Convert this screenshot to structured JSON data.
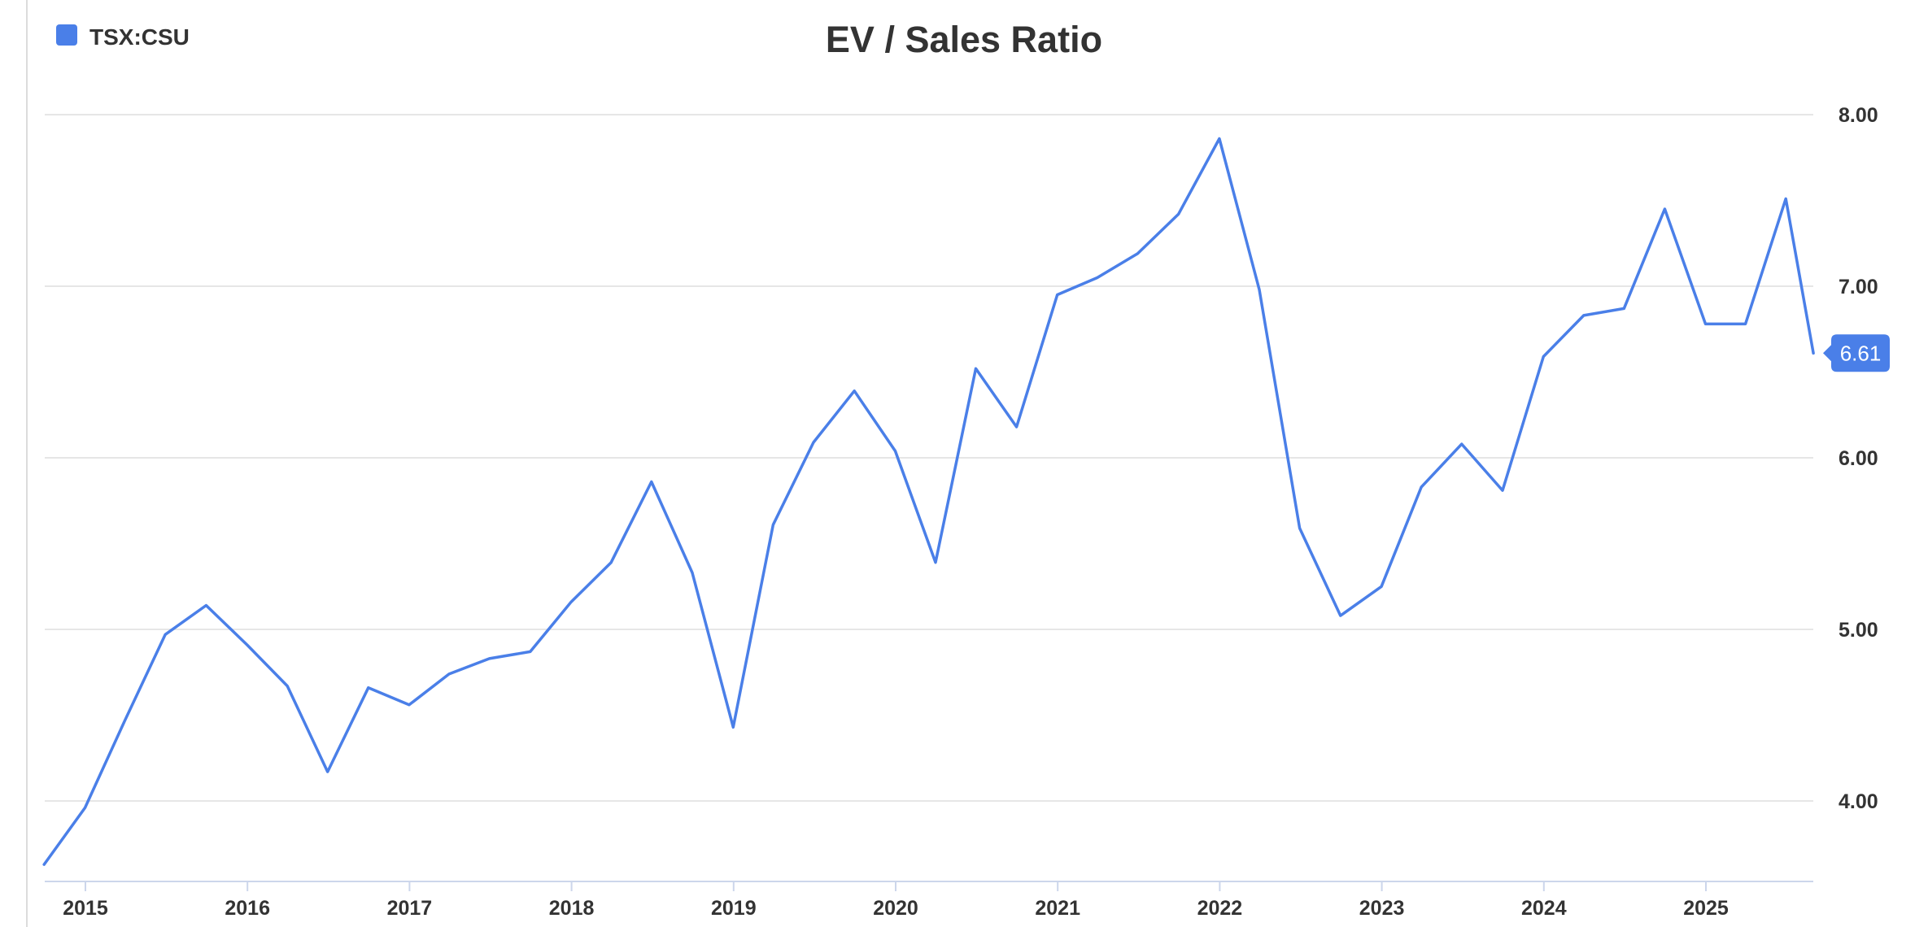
{
  "chart_data": {
    "type": "line",
    "title": "EV / Sales Ratio",
    "xlabel": "",
    "ylabel": "",
    "legend": {
      "position": "top-left"
    },
    "grid": true,
    "ylim": [
      3.5,
      8.3
    ],
    "y_ticks": [
      {
        "value": 8.0,
        "label": "8.00"
      },
      {
        "value": 7.0,
        "label": "7.00"
      },
      {
        "value": 6.0,
        "label": "6.00"
      },
      {
        "value": 5.0,
        "label": "5.00"
      },
      {
        "value": 4.0,
        "label": "4.00"
      }
    ],
    "x_ticks": [
      "2015",
      "2016",
      "2017",
      "2018",
      "2019",
      "2020",
      "2021",
      "2022",
      "2023",
      "2024",
      "2025"
    ],
    "series": [
      {
        "name": "TSX:CSU",
        "color": "#4a7fe8",
        "last_value_label": "6.61",
        "points": [
          [
            "2014-09-30",
            3.63
          ],
          [
            "2014-12-31",
            3.96
          ],
          [
            "2015-03-31",
            4.47
          ],
          [
            "2015-06-30",
            4.97
          ],
          [
            "2015-09-30",
            5.14
          ],
          [
            "2015-12-31",
            4.91
          ],
          [
            "2016-03-31",
            4.67
          ],
          [
            "2016-06-30",
            4.17
          ],
          [
            "2016-09-30",
            4.66
          ],
          [
            "2016-12-31",
            4.56
          ],
          [
            "2017-03-31",
            4.74
          ],
          [
            "2017-06-30",
            4.83
          ],
          [
            "2017-09-30",
            4.87
          ],
          [
            "2017-12-31",
            5.16
          ],
          [
            "2018-03-31",
            5.39
          ],
          [
            "2018-06-30",
            5.86
          ],
          [
            "2018-09-30",
            5.33
          ],
          [
            "2018-12-31",
            4.43
          ],
          [
            "2019-03-31",
            5.61
          ],
          [
            "2019-06-30",
            6.09
          ],
          [
            "2019-09-30",
            6.39
          ],
          [
            "2019-12-31",
            6.04
          ],
          [
            "2020-03-31",
            5.39
          ],
          [
            "2020-06-30",
            6.52
          ],
          [
            "2020-09-30",
            6.18
          ],
          [
            "2020-12-31",
            6.95
          ],
          [
            "2021-03-31",
            7.05
          ],
          [
            "2021-06-30",
            7.19
          ],
          [
            "2021-09-30",
            7.42
          ],
          [
            "2021-12-31",
            7.86
          ],
          [
            "2022-03-31",
            6.98
          ],
          [
            "2022-06-30",
            5.59
          ],
          [
            "2022-09-30",
            5.08
          ],
          [
            "2022-12-31",
            5.25
          ],
          [
            "2023-03-31",
            5.83
          ],
          [
            "2023-06-30",
            6.08
          ],
          [
            "2023-09-30",
            5.81
          ],
          [
            "2023-12-31",
            6.59
          ],
          [
            "2024-03-31",
            6.83
          ],
          [
            "2024-06-30",
            6.87
          ],
          [
            "2024-09-30",
            7.45
          ],
          [
            "2024-12-31",
            6.78
          ],
          [
            "2025-03-31",
            6.78
          ],
          [
            "2025-06-30",
            7.51
          ],
          [
            "2025-08-31",
            6.61
          ]
        ]
      }
    ]
  }
}
